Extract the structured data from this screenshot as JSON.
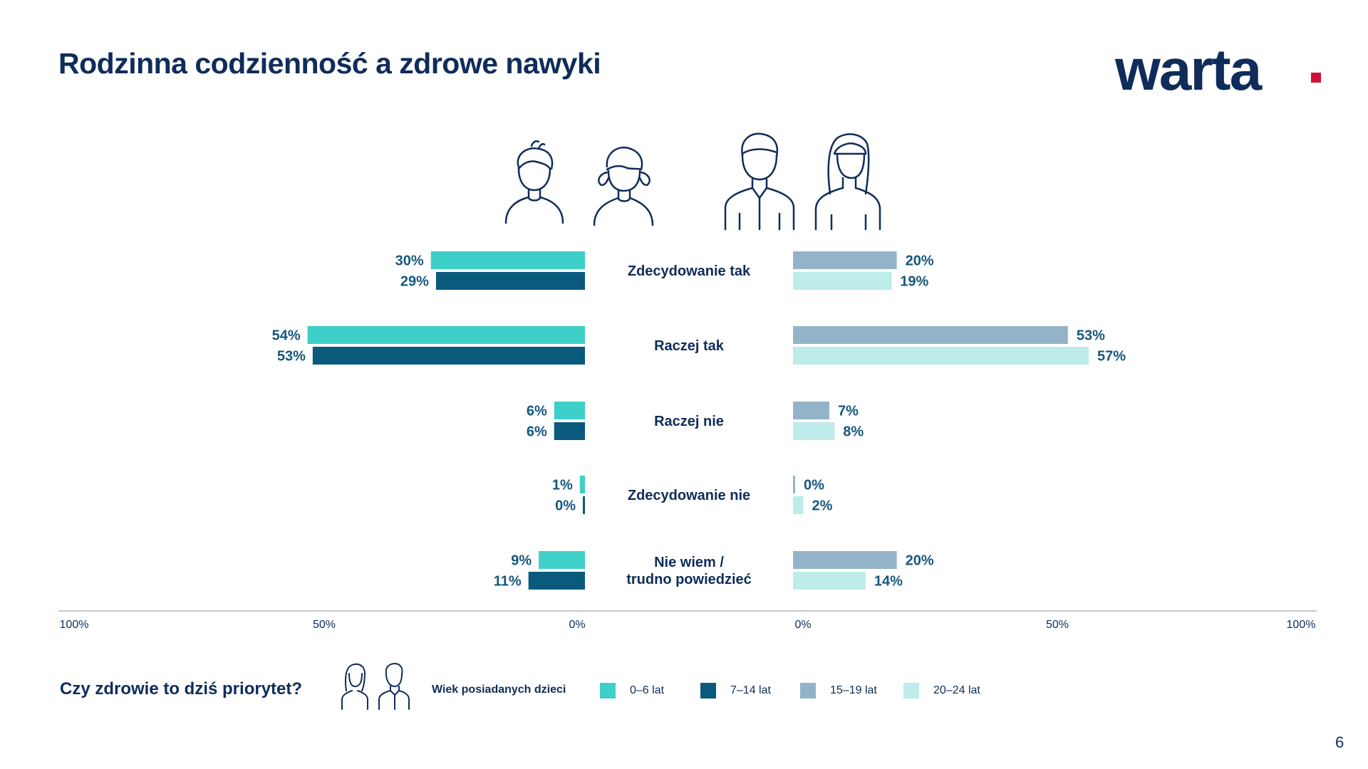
{
  "title": "Rodzinna codzienność a zdrowe nawyki",
  "logo_text": "warta",
  "bottom_question": "Czy zdrowie to dziś priorytet?",
  "legend_title": "Wiek posiadanych dzieci",
  "page_number": "6",
  "colors": {
    "s0_6": "#3ecfc8",
    "s7_14": "#0a5a7d",
    "s15_19": "#93b3c8",
    "s20_24": "#bdecea",
    "text": "#0f2c5a",
    "logo_dot": "#d0103a"
  },
  "chart_data": {
    "type": "bar",
    "orientation": "horizontal-diverging",
    "categories": [
      "Zdecydowanie tak",
      "Raczej tak",
      "Raczej nie",
      "Zdecydowanie nie",
      "Nie wiem /\ntrudno powiedzieć"
    ],
    "left_series": [
      {
        "name": "0–6 lat",
        "values": [
          30,
          54,
          6,
          1,
          9
        ],
        "labels": [
          "30%",
          "54%",
          "6%",
          "1%",
          "9%"
        ],
        "color": "#3ecfc8"
      },
      {
        "name": "7–14 lat",
        "values": [
          29,
          53,
          6,
          0,
          11
        ],
        "labels": [
          "29%",
          "53%",
          "6%",
          "0%",
          "11%"
        ],
        "color": "#0a5a7d"
      }
    ],
    "right_series": [
      {
        "name": "15–19 lat",
        "values": [
          20,
          53,
          7,
          0,
          20
        ],
        "labels": [
          "20%",
          "53%",
          "7%",
          "0%",
          "20%"
        ],
        "color": "#93b3c8"
      },
      {
        "name": "20–24 lat",
        "values": [
          19,
          57,
          8,
          2,
          14
        ],
        "labels": [
          "19%",
          "57%",
          "8%",
          "2%",
          "14%"
        ],
        "color": "#bdecea"
      }
    ],
    "left_ticks": [
      "100%",
      "50%",
      "0%"
    ],
    "right_ticks": [
      "0%",
      "50%",
      "100%"
    ],
    "xlim": [
      0,
      100
    ],
    "grid": false
  }
}
